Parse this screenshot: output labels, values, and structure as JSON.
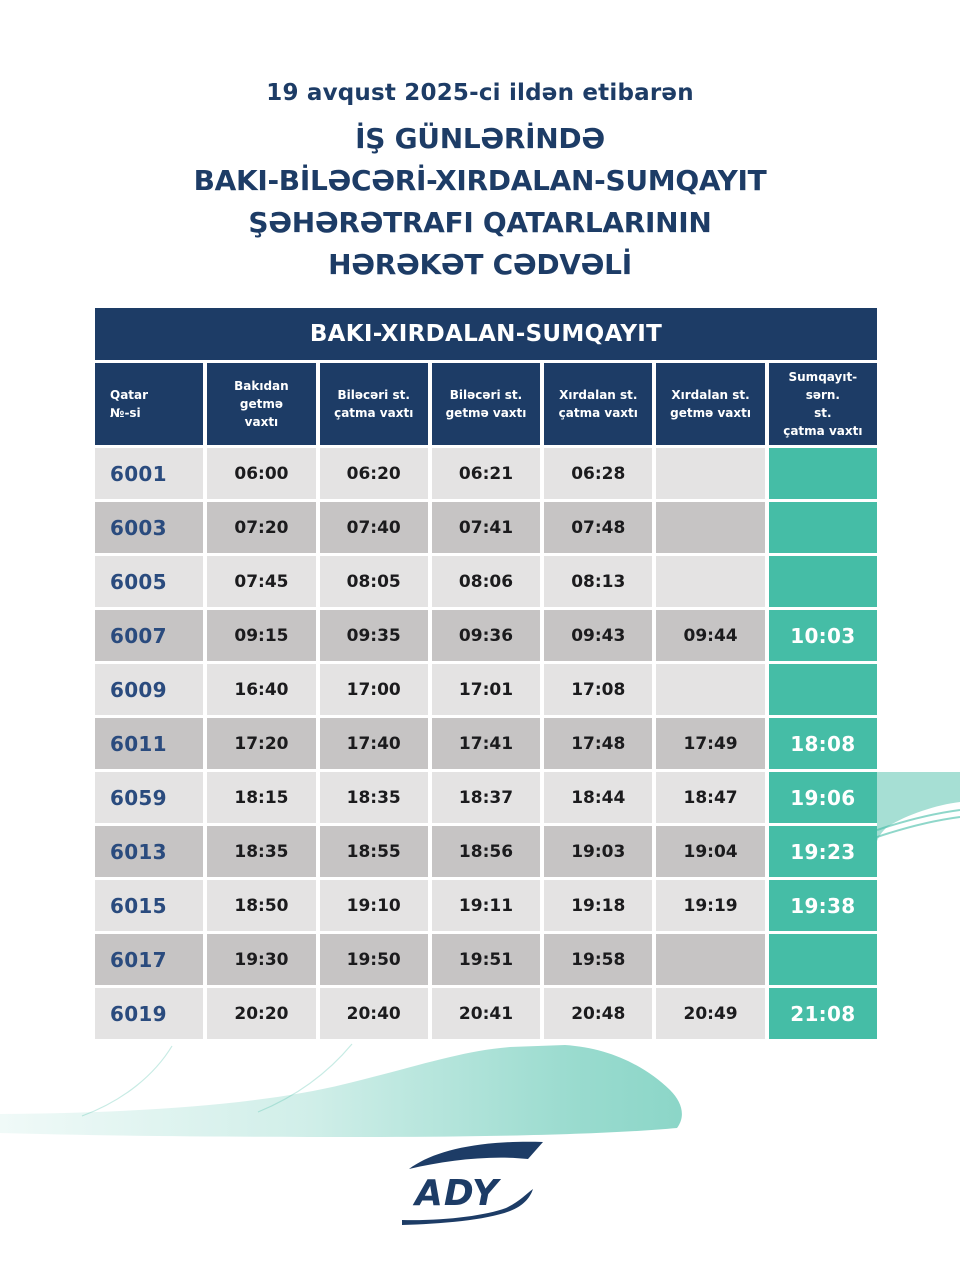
{
  "colors": {
    "navy": "#1d3c66",
    "teal": "#45bda6",
    "row_light": "#e4e3e3",
    "row_dark": "#c6c4c4",
    "train_number": "#2a4b7e",
    "time_text": "#1b1b1d"
  },
  "heading": {
    "date_line": "19 avqust 2025-ci ildən etibarən",
    "title_lines": [
      "İŞ GÜNLƏRİNDƏ",
      "BAKI-BİLƏCƏRİ-XIRDALAN-SUMQAYIT",
      "ŞƏHƏRƏTRAFI QATARLARININ",
      "HƏRƏKƏT CƏDVƏLİ"
    ]
  },
  "table": {
    "title": "BAKI-XIRDALAN-SUMQAYIT",
    "columns": [
      "Qatar\n№-si",
      "Bakıdan\ngetmə\nvaxtı",
      "Biləcəri st.\nçatma vaxtı",
      "Biləcəri st.\ngetmə vaxtı",
      "Xırdalan st.\nçatma vaxtı",
      "Xırdalan st.\ngetmə vaxtı",
      "Sumqayıt-sərn.\nst.\nçatma vaxtı"
    ],
    "rows": [
      {
        "train": "6001",
        "times": [
          "06:00",
          "06:20",
          "06:21",
          "06:28",
          "",
          ""
        ]
      },
      {
        "train": "6003",
        "times": [
          "07:20",
          "07:40",
          "07:41",
          "07:48",
          "",
          ""
        ]
      },
      {
        "train": "6005",
        "times": [
          "07:45",
          "08:05",
          "08:06",
          "08:13",
          "",
          ""
        ]
      },
      {
        "train": "6007",
        "times": [
          "09:15",
          "09:35",
          "09:36",
          "09:43",
          "09:44",
          "10:03"
        ]
      },
      {
        "train": "6009",
        "times": [
          "16:40",
          "17:00",
          "17:01",
          "17:08",
          "",
          ""
        ]
      },
      {
        "train": "6011",
        "times": [
          "17:20",
          "17:40",
          "17:41",
          "17:48",
          "17:49",
          "18:08"
        ]
      },
      {
        "train": "6059",
        "times": [
          "18:15",
          "18:35",
          "18:37",
          "18:44",
          "18:47",
          "19:06"
        ]
      },
      {
        "train": "6013",
        "times": [
          "18:35",
          "18:55",
          "18:56",
          "19:03",
          "19:04",
          "19:23"
        ]
      },
      {
        "train": "6015",
        "times": [
          "18:50",
          "19:10",
          "19:11",
          "19:18",
          "19:19",
          "19:38"
        ]
      },
      {
        "train": "6017",
        "times": [
          "19:30",
          "19:50",
          "19:51",
          "19:58",
          "",
          ""
        ]
      },
      {
        "train": "6019",
        "times": [
          "20:20",
          "20:40",
          "20:41",
          "20:48",
          "20:49",
          "21:08"
        ]
      }
    ]
  },
  "logo": {
    "text": "ADY"
  }
}
